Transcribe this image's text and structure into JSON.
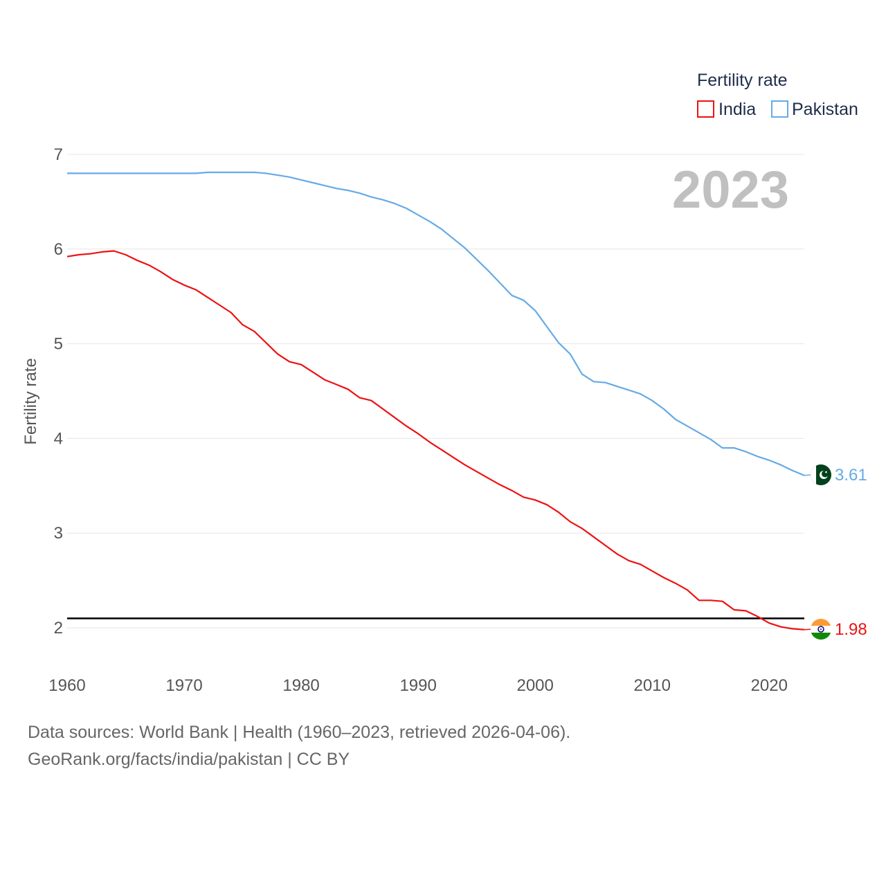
{
  "chart_data": {
    "type": "line",
    "ylabel": "Fertility rate",
    "xlabel": "",
    "year_display": "2023",
    "legend_title": "Fertility rate",
    "x": [
      1960,
      1961,
      1962,
      1963,
      1964,
      1965,
      1966,
      1967,
      1968,
      1969,
      1970,
      1971,
      1972,
      1973,
      1974,
      1975,
      1976,
      1977,
      1978,
      1979,
      1980,
      1981,
      1982,
      1983,
      1984,
      1985,
      1986,
      1987,
      1988,
      1989,
      1990,
      1991,
      1992,
      1993,
      1994,
      1995,
      1996,
      1997,
      1998,
      1999,
      2000,
      2001,
      2002,
      2003,
      2004,
      2005,
      2006,
      2007,
      2008,
      2009,
      2010,
      2011,
      2012,
      2013,
      2014,
      2015,
      2016,
      2017,
      2018,
      2019,
      2020,
      2021,
      2022,
      2023
    ],
    "xlim": [
      1960,
      2023
    ],
    "ylim": [
      1.55,
      7.1
    ],
    "x_ticks": [
      "1960",
      "1970",
      "1980",
      "1990",
      "2000",
      "2010",
      "2020"
    ],
    "y_ticks": [
      "2",
      "3",
      "4",
      "5",
      "6",
      "7"
    ],
    "reference_line": {
      "value": 2.1,
      "color": "#000000"
    },
    "series": [
      {
        "name": "India",
        "color": "#ee1111",
        "end_label": "1.98",
        "flag_icon": "india-flag-icon",
        "values": [
          5.92,
          5.94,
          5.95,
          5.97,
          5.98,
          5.94,
          5.88,
          5.83,
          5.76,
          5.68,
          5.62,
          5.57,
          5.49,
          5.41,
          5.33,
          5.2,
          5.13,
          5.01,
          4.89,
          4.81,
          4.78,
          4.7,
          4.62,
          4.57,
          4.52,
          4.43,
          4.4,
          4.31,
          4.22,
          4.13,
          4.05,
          3.96,
          3.88,
          3.8,
          3.72,
          3.65,
          3.58,
          3.51,
          3.45,
          3.38,
          3.35,
          3.3,
          3.22,
          3.12,
          3.05,
          2.96,
          2.87,
          2.78,
          2.71,
          2.67,
          2.6,
          2.53,
          2.47,
          2.4,
          2.29,
          2.29,
          2.28,
          2.19,
          2.18,
          2.12,
          2.05,
          2.01,
          1.99,
          1.98
        ]
      },
      {
        "name": "Pakistan",
        "color": "#66aae6",
        "end_label": "3.61",
        "flag_icon": "pakistan-flag-icon",
        "values": [
          6.8,
          6.8,
          6.8,
          6.8,
          6.8,
          6.8,
          6.8,
          6.8,
          6.8,
          6.8,
          6.8,
          6.8,
          6.81,
          6.81,
          6.81,
          6.81,
          6.81,
          6.8,
          6.78,
          6.76,
          6.73,
          6.7,
          6.67,
          6.64,
          6.62,
          6.59,
          6.55,
          6.52,
          6.48,
          6.43,
          6.36,
          6.29,
          6.21,
          6.11,
          6.01,
          5.89,
          5.77,
          5.64,
          5.51,
          5.46,
          5.35,
          5.18,
          5.01,
          4.89,
          4.68,
          4.6,
          4.59,
          4.55,
          4.51,
          4.47,
          4.4,
          4.31,
          4.2,
          4.13,
          4.06,
          3.99,
          3.9,
          3.9,
          3.86,
          3.81,
          3.77,
          3.72,
          3.66,
          3.61
        ]
      }
    ]
  },
  "footer": {
    "line1": "Data sources: World Bank | Health (1960–2023, retrieved 2026-04-06).",
    "line2": "GeoRank.org/facts/india/pakistan | CC BY"
  }
}
